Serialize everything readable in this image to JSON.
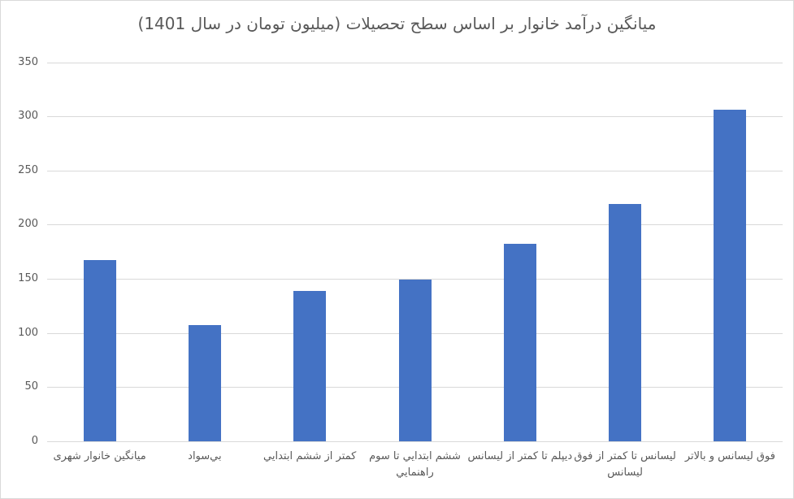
{
  "chart_data": {
    "type": "bar",
    "title": "ميانگين درآمد خانوار بر اساس سطح تحصيلات (ميليون تومان در سال 1401)",
    "categories": [
      "ميانگين خانوار شهری",
      "بي‌سواد",
      "كمتر از ششم ابتدايي",
      "ششم ابتدايي تا سوم راهنمايي",
      "ديپلم تا كمتر از ليسانس",
      "ليسانس تا كمتر از فوق ليسانس",
      "فوق ليسانس و بالاتر"
    ],
    "values": [
      167,
      107,
      139,
      149,
      182,
      219,
      306
    ],
    "y_ticks": [
      0,
      50,
      100,
      150,
      200,
      250,
      300,
      350
    ],
    "ylim": [
      0,
      350
    ],
    "xlabel": "",
    "ylabel": "",
    "grid": true,
    "legend": false,
    "text_direction": "rtl",
    "colors": {
      "bar": "#4472C4",
      "gridline": "#D9D9D9",
      "axis_labels": "#595959",
      "title": "#595959",
      "frame_border": "#D9D9D9",
      "background": "#FFFFFF"
    }
  }
}
